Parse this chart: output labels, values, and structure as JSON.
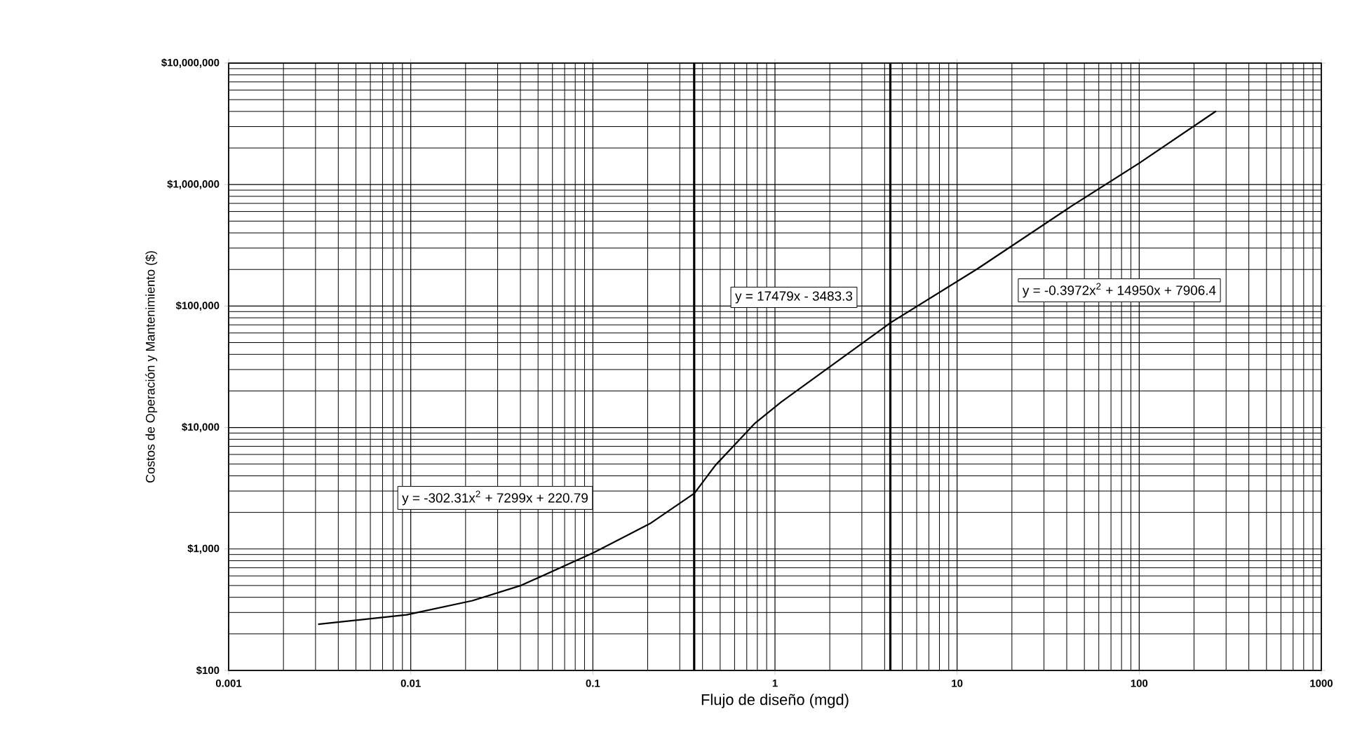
{
  "chart_data": {
    "type": "line",
    "xlabel": "Flujo de diseño (mgd)",
    "ylabel": "Costos de Operación y Mantenimiento ($)",
    "log": "xy",
    "grid": true,
    "marker": "none",
    "line_style": "solid",
    "xlim": [
      0.001,
      1000
    ],
    "xticks": [
      0.001,
      0.01,
      0.1,
      1,
      10,
      100,
      1000
    ],
    "ylim": [
      100,
      10000000
    ],
    "yticks": [
      {
        "value": 100,
        "label": "$100"
      },
      {
        "value": 1000,
        "label": "$1,000"
      },
      {
        "value": 10000,
        "label": "$10,000"
      },
      {
        "value": 100000,
        "label": "$100,000"
      },
      {
        "value": 1000000,
        "label": "$1,000,000"
      },
      {
        "value": 10000000,
        "label": "$10,000,000"
      }
    ],
    "series": [
      {
        "color": "#000000",
        "x": [
          0.0031,
          0.0095,
          0.0218,
          0.0405,
          0.101,
          0.206,
          0.361,
          0.471,
          0.778,
          1.08,
          4.33,
          12.9,
          42.2,
          100,
          264
        ],
        "values": [
          240,
          287,
          375,
          502,
          933,
          1618,
          2874,
          4890,
          10860,
          16200,
          73100,
          202000,
          660000,
          1500000,
          4020000
        ]
      }
    ],
    "ref_lines": [
      {
        "axis": "x",
        "value": 0.36,
        "color": "#000000"
      },
      {
        "axis": "x",
        "value": 4.3,
        "color": "#000000"
      }
    ],
    "annotations": [
      "y = -302.31x$^{2}$ + 7299x + 220.79",
      "y = 17479x - 3483.3",
      "y = -0.3972x$^{2}$ + 14950x + 7906.4"
    ]
  }
}
